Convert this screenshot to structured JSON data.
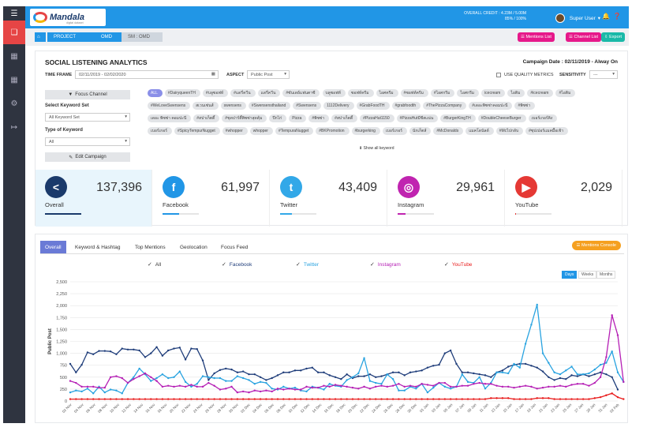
{
  "app": {
    "logo": "Mandala",
    "logo_sub": "digital dataset"
  },
  "header": {
    "credit_line1": "OVERALL CREDIT : 4.23M / 5.00M",
    "credit_line2": "85% / 100%",
    "user_name": "Super User"
  },
  "breadcrumb": {
    "items": [
      "PROJECT",
      "OMD",
      "SM : OMD"
    ]
  },
  "actions": {
    "mentions_list": "Mentions List",
    "channel_list": "Channel List",
    "export": "Export"
  },
  "panel": {
    "title": "SOCIAL LISTENING ANALYTICS",
    "campaign_date": "Campaign Date : 02/11/2019 - Alway On",
    "time_frame_label": "TIME FRAME",
    "time_frame_value": "02/11/2019 - 02/02/2020",
    "aspect_label": "ASPECT",
    "aspect_value": "Public Post",
    "use_quality_metrics": "USE QUALITY METRICS",
    "sensitivity_label": "SENSITIVITY",
    "sensitivity_value": "---",
    "focus_channel": "Focus Channel",
    "select_keyword_label": "Select Keyword Set",
    "select_keyword_value": "All Keyword Set",
    "type_keyword_label": "Type of Keyword",
    "type_keyword_value": "All",
    "edit_campaign": "Edit Campaign",
    "show_all_keyword": "Show all keyword"
  },
  "tag_rows": [
    [
      "ALL",
      "#DairyqueenTH",
      "#บลูซอฟท์",
      "#แดรี่ควีน",
      "แดรี่ควีน",
      "#ซันเดย์แฟนตาซี",
      "บลูซอฟท์",
      "ซอฟท์ครีม",
      "ไอศครีม",
      "#ซอฟท์ครีม",
      "#ไอศกรีม",
      "ไอศกรีม",
      "icecream",
      "ไอติม",
      "#icecream",
      "#ไอติม"
    ],
    [
      "#WeLoveSwensens",
      "สเวนเซ่นส์",
      "swensens",
      "#Swensensthailand",
      "#Swensens",
      "1112Delivery",
      "#GrabFoodTH",
      "#grabfoodth",
      "#ThePizzaCompany",
      "#เดอะพิซซ่าคอมปะนี",
      "#พิซซ่า"
    ],
    [
      "เดอะ พิซซ่า คอมปะนี",
      "#สปาเก็ตตี้",
      "#ชุดปาร์ตี้พิซซ่าสุดคุ้ม",
      "ปีกไก่",
      "Pizza",
      "#พิซซ่า",
      "#สปาเก็ตตี้",
      "#PizzaHut1150",
      "#PizzaHutมีชีสแน่น",
      "#BurgerKingTH",
      "#DoubleCheeseBurger",
      "เบอร์เกอร์คิง"
    ],
    [
      "เบอร์เกอร์",
      "#SpicyTempurNugget",
      "#whopper",
      "whopper",
      "#TempuraNugget",
      "#BKPromotion",
      "#burgerking",
      "เบอร์เกอร์",
      "นักเก็ตส์",
      "#McDonalds",
      "แมคโดนัลด์",
      "#Mcไปกลับ",
      "#ซุปเปอร์แมคมื้อเช้า"
    ]
  ],
  "stats": [
    {
      "name": "Overall",
      "value": "137,396",
      "icon": "share-icon",
      "color": "#1a3a6b",
      "progress": 1.0
    },
    {
      "name": "Facebook",
      "value": "61,997",
      "icon": "facebook-icon",
      "color": "#2196e6",
      "progress": 0.45
    },
    {
      "name": "Twitter",
      "value": "43,409",
      "icon": "twitter-icon",
      "color": "#32a8e8",
      "progress": 0.32
    },
    {
      "name": "Instagram",
      "value": "29,961",
      "icon": "instagram-icon",
      "color": "#c024b0",
      "progress": 0.22
    },
    {
      "name": "YouTube",
      "value": "2,029",
      "icon": "youtube-icon",
      "color": "#e53935",
      "progress": 0.02
    }
  ],
  "tabs": [
    "Overall",
    "Keyword & Hashtag",
    "Top Mentions",
    "Geolocation",
    "Focus Feed"
  ],
  "mentions_console": "Mentions Console",
  "legend": [
    {
      "name": "All",
      "color": "#333333"
    },
    {
      "name": "Facebook",
      "color": "#1f3d7a"
    },
    {
      "name": "Twitter",
      "color": "#29a3e0"
    },
    {
      "name": "Instagram",
      "color": "#b51fb5"
    },
    {
      "name": "YouTube",
      "color": "#e81b1b"
    }
  ],
  "range_buttons": [
    "Days",
    "Weeks",
    "Months"
  ],
  "chart_data": {
    "type": "line",
    "ylabel": "Public Post",
    "ylim": [
      0,
      2500
    ],
    "yticks": [
      "0",
      "250",
      "500",
      "750",
      "1,000",
      "1,250",
      "1,500",
      "1,750",
      "2,000",
      "2,250",
      "2,500"
    ],
    "xticks": [
      "02 Nov",
      "04 Nov",
      "06 Nov",
      "08 Nov",
      "10 Nov",
      "12 Nov",
      "14 Nov",
      "16 Nov",
      "18 Nov",
      "20 Nov",
      "22 Nov",
      "24 Nov",
      "26 Nov",
      "28 Nov",
      "30 Nov",
      "02 Dec",
      "04 Dec",
      "06 Dec",
      "08 Dec",
      "10 Dec",
      "12 Dec",
      "14 Dec",
      "16 Dec",
      "18 Dec",
      "20 Dec",
      "22 Dec",
      "24 Dec",
      "26 Dec",
      "28 Dec",
      "30 Dec",
      "01 Jan",
      "03 Jan",
      "05 Jan",
      "07 Jan",
      "09 Jan",
      "11 Jan",
      "13 Jan",
      "15 Jan",
      "17 Jan",
      "19 Jan",
      "21 Jan",
      "23 Jan",
      "25 Jan",
      "27 Jan",
      "29 Jan",
      "31 Jan",
      "02 Feb"
    ],
    "series": [
      {
        "name": "Facebook",
        "color": "#1f3d7a",
        "values": [
          780,
          600,
          760,
          1020,
          980,
          1050,
          1050,
          1040,
          980,
          1100,
          1080,
          1080,
          1060,
          920,
          1000,
          1130,
          950,
          1060,
          1100,
          1120,
          870,
          1100,
          1090,
          850,
          440,
          580,
          650,
          680,
          660,
          600,
          620,
          560,
          560,
          500,
          440,
          480,
          540,
          600,
          600,
          640,
          640,
          680,
          700,
          600,
          600,
          540,
          500,
          460,
          560,
          480,
          520,
          520,
          560,
          500,
          520,
          560,
          600,
          600,
          540,
          600,
          620,
          640,
          700,
          740,
          760,
          1000,
          1060,
          780,
          600,
          600,
          580,
          560,
          540,
          500,
          600,
          640,
          720,
          760,
          780,
          780,
          740,
          700,
          620,
          500,
          440,
          480,
          460,
          540,
          520,
          560,
          520,
          560,
          600,
          560,
          500,
          240
        ]
      },
      {
        "name": "Twitter",
        "color": "#29a3e0",
        "values": [
          180,
          220,
          200,
          260,
          160,
          300,
          180,
          240,
          220,
          160,
          380,
          500,
          680,
          560,
          420,
          480,
          560,
          480,
          500,
          620,
          400,
          300,
          360,
          520,
          500,
          480,
          480,
          420,
          420,
          520,
          480,
          440,
          360,
          400,
          380,
          260,
          240,
          300,
          260,
          280,
          220,
          200,
          300,
          280,
          240,
          360,
          320,
          300,
          440,
          500,
          580,
          900,
          420,
          380,
          360,
          560,
          460,
          220,
          220,
          300,
          260,
          360,
          180,
          280,
          380,
          300,
          260,
          300,
          560,
          400,
          380,
          500,
          260,
          380,
          600,
          600,
          580,
          780,
          700,
          1200,
          1600,
          2020,
          1000,
          800,
          600,
          560,
          640,
          720,
          560,
          560,
          580,
          660,
          760,
          800,
          1040,
          600,
          400
        ]
      },
      {
        "name": "Instagram",
        "color": "#b51fb5",
        "values": [
          420,
          380,
          300,
          300,
          300,
          280,
          280,
          500,
          520,
          480,
          380,
          460,
          520,
          580,
          500,
          420,
          300,
          320,
          300,
          320,
          300,
          340,
          300,
          300,
          380,
          320,
          240,
          260,
          300,
          180,
          200,
          180,
          220,
          200,
          220,
          200,
          260,
          240,
          260,
          240,
          240,
          300,
          280,
          280,
          320,
          300,
          340,
          320,
          300,
          280,
          260,
          300,
          260,
          300,
          320,
          300,
          320,
          360,
          300,
          320,
          300,
          360,
          340,
          320,
          380,
          380,
          300,
          300,
          320,
          320,
          360,
          380,
          360,
          360,
          320,
          300,
          300,
          280,
          300,
          320,
          300,
          260,
          280,
          300,
          300,
          320,
          300,
          340,
          360,
          360,
          320,
          380,
          500,
          920,
          1800,
          1380,
          400
        ]
      },
      {
        "name": "YouTube",
        "color": "#e81b1b",
        "values": [
          40,
          40,
          40,
          40,
          40,
          40,
          40,
          40,
          40,
          40,
          40,
          40,
          40,
          40,
          40,
          40,
          40,
          40,
          40,
          40,
          40,
          40,
          40,
          40,
          40,
          40,
          40,
          40,
          40,
          40,
          40,
          40,
          40,
          40,
          40,
          40,
          40,
          40,
          40,
          40,
          40,
          40,
          40,
          40,
          40,
          40,
          40,
          40,
          40,
          40,
          40,
          40,
          40,
          40,
          40,
          40,
          40,
          40,
          40,
          40,
          40,
          40,
          40,
          40,
          40,
          40,
          40,
          40,
          40,
          40,
          40,
          40,
          40,
          60,
          60,
          60,
          60,
          40,
          40,
          40,
          40,
          60,
          60,
          60,
          40,
          40,
          40,
          40,
          40,
          40,
          40,
          60,
          80,
          120,
          160,
          80,
          40
        ]
      }
    ]
  }
}
